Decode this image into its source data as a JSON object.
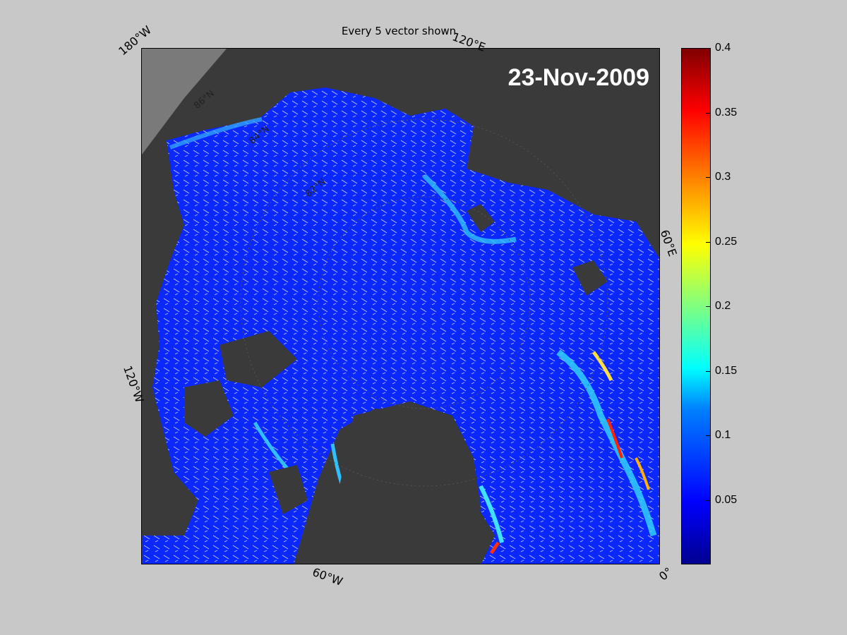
{
  "title": "Every 5 vector shown",
  "date": "23-Nov-2009",
  "lon_labels": {
    "w180": "180°W",
    "e120": "120°E",
    "e60": "60°E",
    "w120": "120°W",
    "w60": "60°W",
    "zero": "0°"
  },
  "lat_labels": [
    "86°N",
    "84°N",
    "82°N"
  ],
  "colorbar": {
    "ticks": [
      "0.4",
      "0.35",
      "0.3",
      "0.25",
      "0.2",
      "0.15",
      "0.1",
      "0.05"
    ],
    "min": 0,
    "max": 0.4,
    "colormap": "jet"
  },
  "colors": {
    "land": "#3a3a3a",
    "ice_low": "#0a28ff",
    "background": "#c8c8c8"
  }
}
